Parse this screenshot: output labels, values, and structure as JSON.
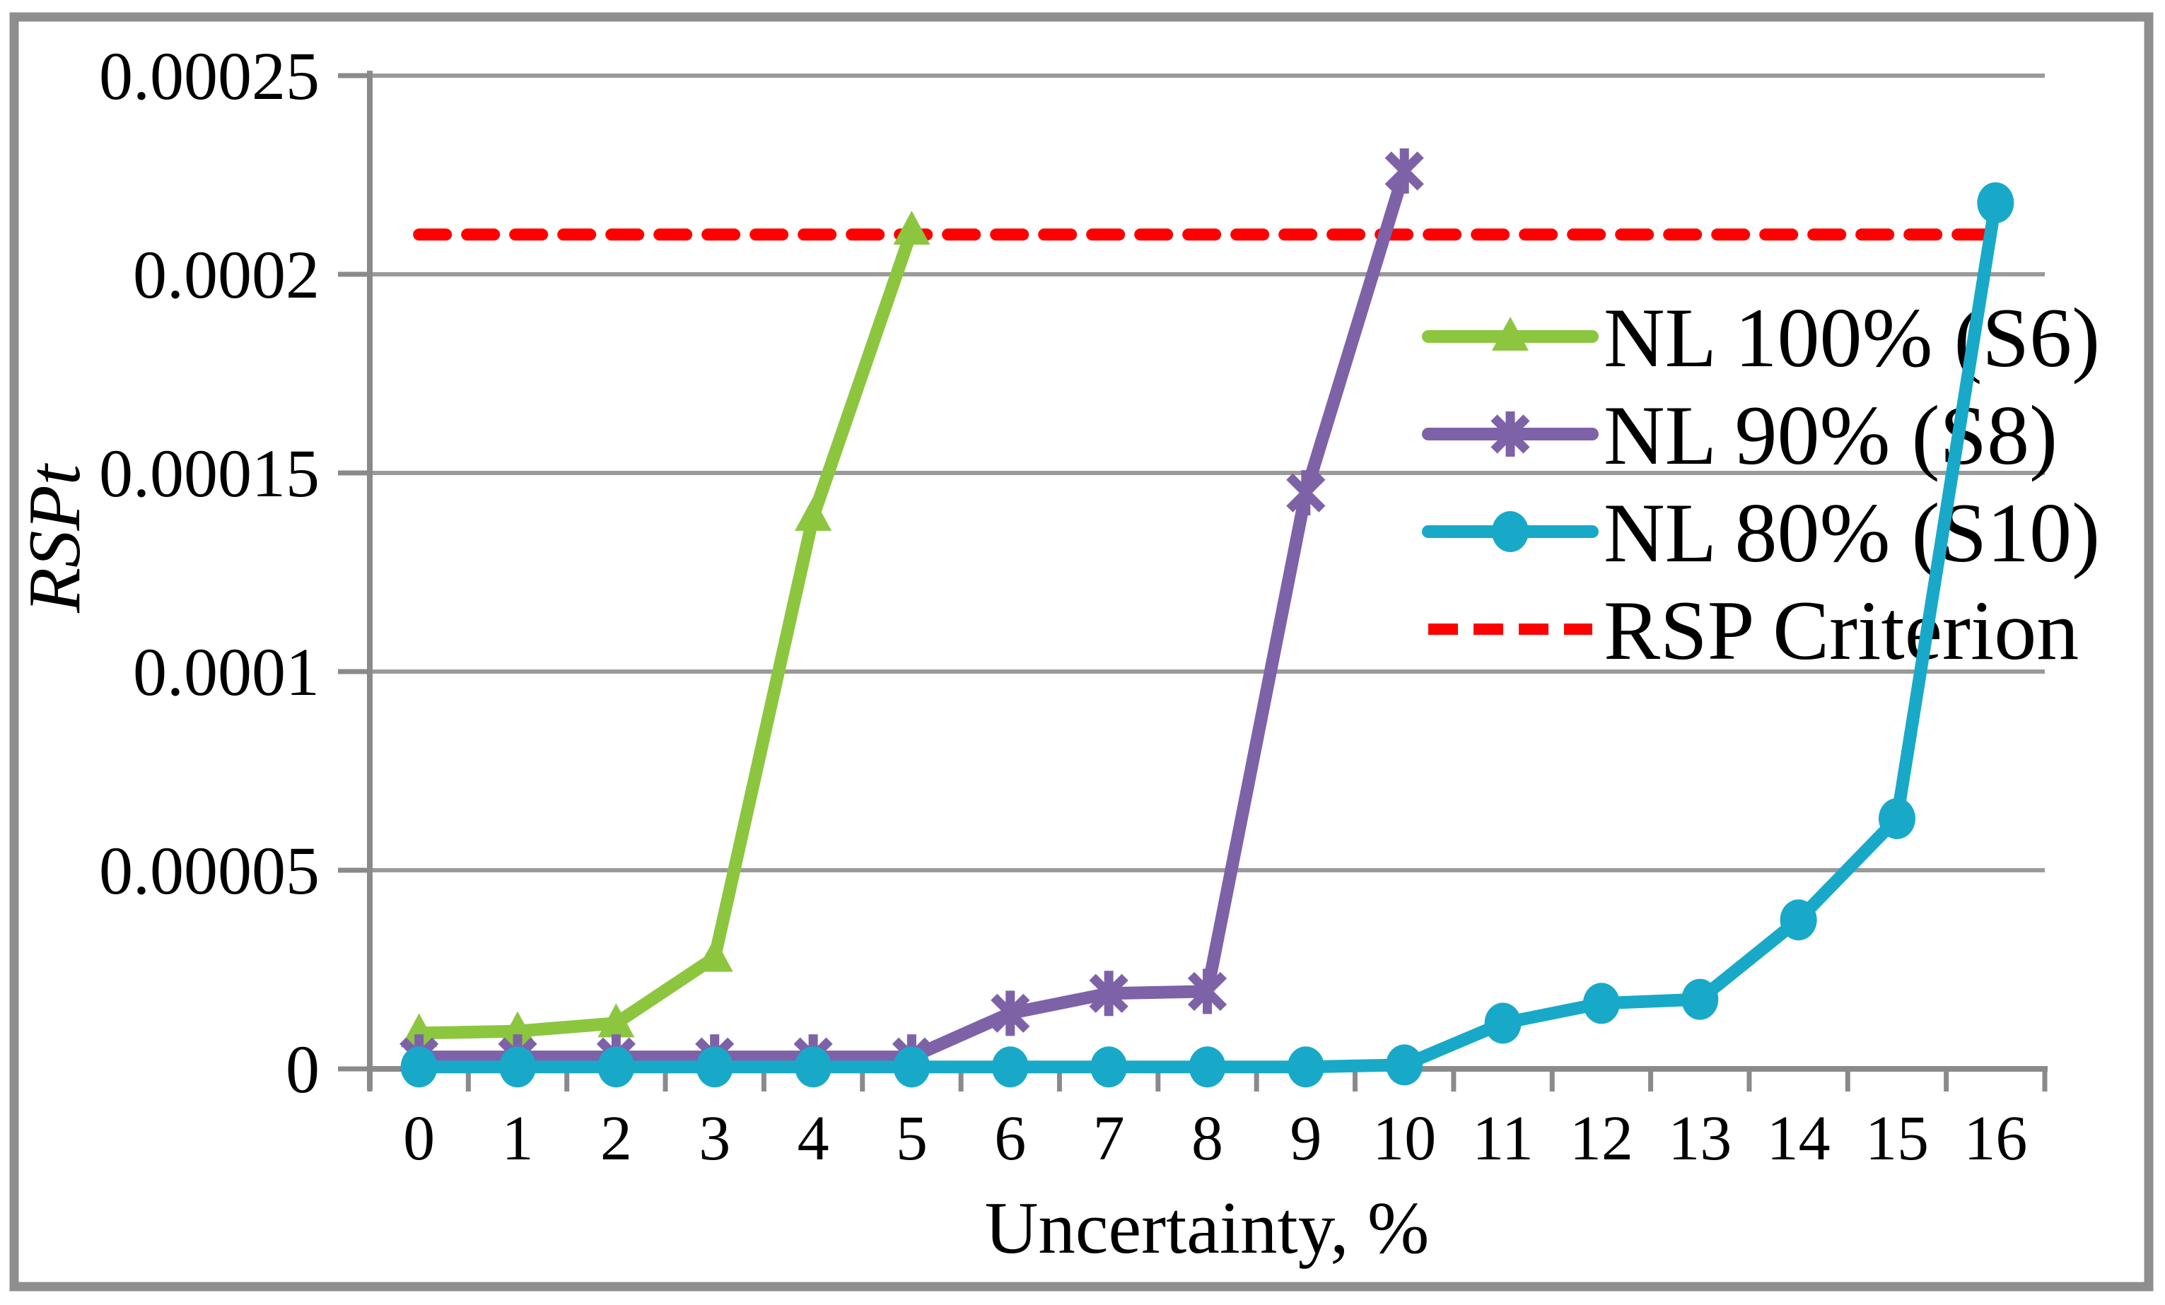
{
  "figure": {
    "background": "#ffffff",
    "border_color": "#8e8e8e"
  },
  "chart_data": {
    "type": "line",
    "title": "",
    "xlabel": "Uncertainty, %",
    "ylabel": "RSPt",
    "x_categories": [
      "0",
      "1",
      "2",
      "3",
      "4",
      "5",
      "6",
      "7",
      "8",
      "9",
      "10",
      "11",
      "12",
      "13",
      "14",
      "15",
      "16"
    ],
    "ylim": [
      0,
      0.00025
    ],
    "xlim": [
      0,
      16
    ],
    "grid": "horizontal",
    "legend_position": "inside-right",
    "y_ticks": [
      {
        "value": 0,
        "label": "0"
      },
      {
        "value": 5e-05,
        "label": "0.00005"
      },
      {
        "value": 0.0001,
        "label": "0.0001"
      },
      {
        "value": 0.00015,
        "label": "0.00015"
      },
      {
        "value": 0.0002,
        "label": "0.0002"
      },
      {
        "value": 0.00025,
        "label": "0.00025"
      }
    ],
    "series": [
      {
        "name": "NL 100% (S6)",
        "color": "#8CC63F",
        "marker": "triangle",
        "values": [
          9e-06,
          9.5e-06,
          1.15e-05,
          2.8e-05,
          0.000139,
          0.000211
        ]
      },
      {
        "name": "NL 90% (S8)",
        "color": "#7E62A8",
        "marker": "asterisk",
        "values": [
          3e-06,
          3e-06,
          3e-06,
          3e-06,
          3e-06,
          3e-06,
          1.4e-05,
          1.9e-05,
          1.95e-05,
          0.000145,
          0.000226
        ]
      },
      {
        "name": "NL 80% (S10)",
        "color": "#18A9C9",
        "marker": "circle",
        "values": [
          5e-07,
          5e-07,
          5e-07,
          5e-07,
          5e-07,
          5e-07,
          5e-07,
          5e-07,
          5e-07,
          5e-07,
          1e-06,
          1.15e-05,
          1.65e-05,
          1.75e-05,
          3.75e-05,
          6.3e-05,
          0.000218
        ]
      }
    ],
    "criterion": {
      "name": "RSP Criterion",
      "color": "#FF0000",
      "style": "dashed",
      "value": 0.00021
    },
    "colors": {
      "axis": "#8a8a8a",
      "grid": "#9a9a9a",
      "text": "#000000"
    }
  }
}
